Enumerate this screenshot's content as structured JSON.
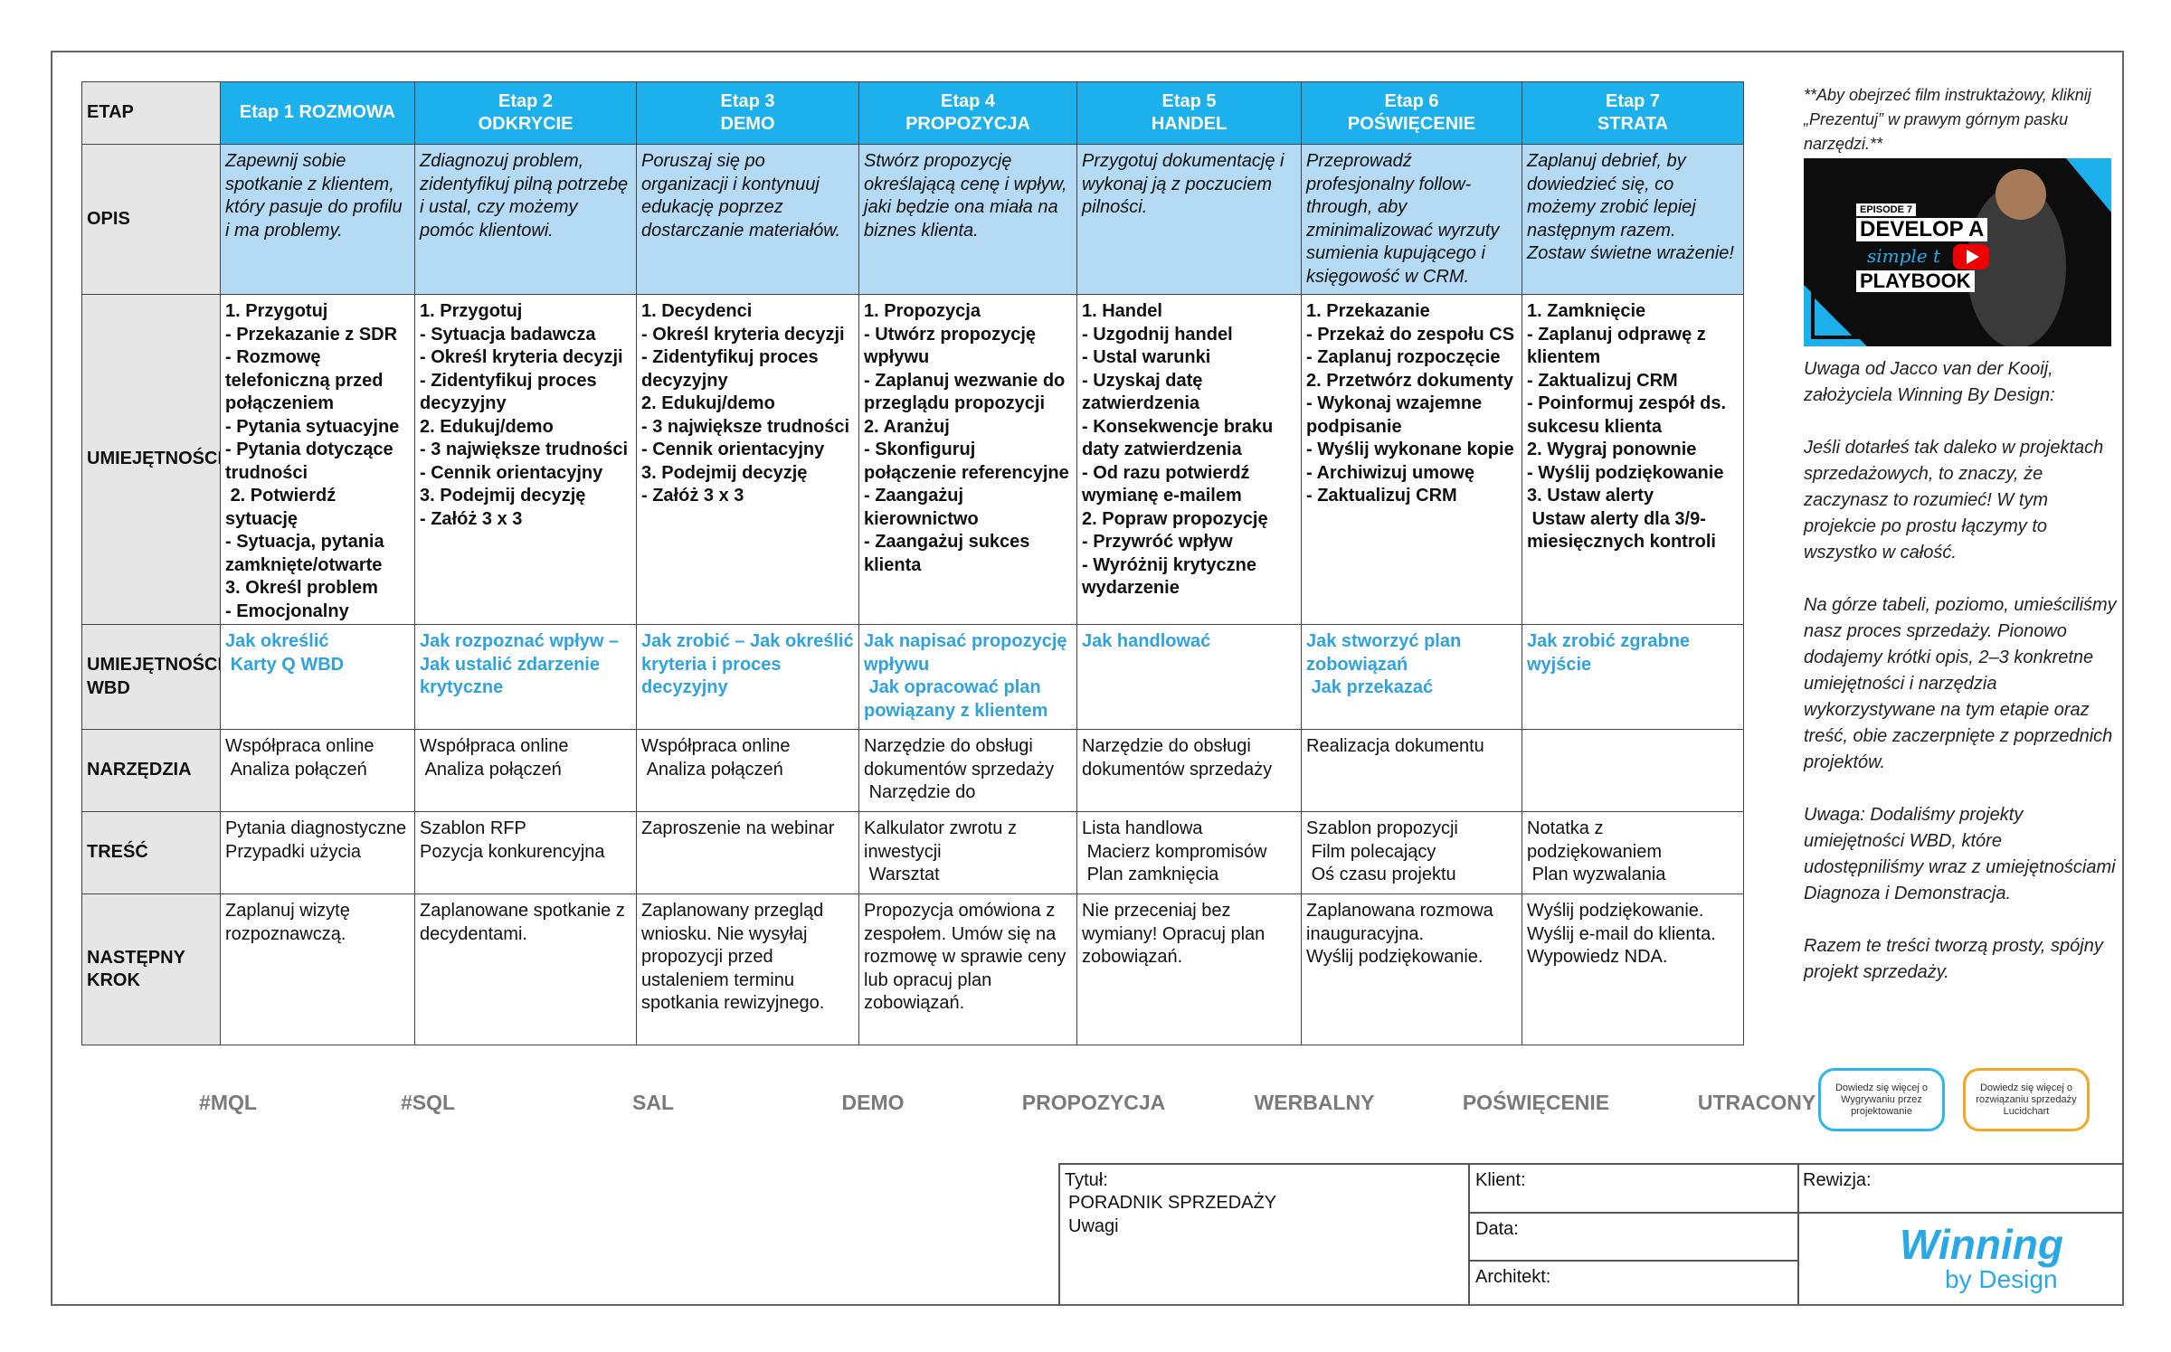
{
  "table": {
    "header": [
      [
        "ETAP"
      ],
      [
        "Etap 1 ROZMOWA"
      ],
      [
        "Etap 2",
        "ODKRYCIE"
      ],
      [
        "Etap 3",
        "DEMO"
      ],
      [
        "Etap 4",
        "PROPOZYCJA"
      ],
      [
        "Etap 5",
        "HANDEL"
      ],
      [
        "Etap 6",
        "POŚWIĘCENIE"
      ],
      [
        "Etap 7",
        "STRATA"
      ]
    ],
    "rows": [
      {
        "label": [
          "OPIS"
        ],
        "cells": [
          [
            "Zapewnij sobie spotkanie z klientem, który pasuje do profilu i ma problemy."
          ],
          [
            "Zdiagnozuj problem, zidentyfikuj pilną potrzebę i ustal, czy możemy pomóc klientowi."
          ],
          [
            "Poruszaj się po organizacji i kontynuuj edukację poprzez dostarczanie materiałów."
          ],
          [
            "Stwórz propozycję określającą cenę i wpływ, jaki będzie ona miała na biznes klienta."
          ],
          [
            "Przygotuj dokumentację i wykonaj ją z poczuciem pilności."
          ],
          [
            "Przeprowadź profesjonalny follow-through, aby zminimalizować wyrzuty sumienia kupującego i księgowość w CRM."
          ],
          [
            "Zaplanuj debrief, by dowiedzieć się, co możemy zrobić lepiej następnym razem. Zostaw świetne wrażenie!"
          ]
        ]
      },
      {
        "label": [
          "UMIEJĘTNOŚCI"
        ],
        "cells": [
          [
            "1. Przygotuj",
            "- Przekazanie z SDR",
            "- Rozmowę telefoniczną przed połączeniem",
            "- Pytania sytuacyjne",
            "- Pytania dotyczące trudności",
            " 2. Potwierdź sytuację",
            "- Sytuacja, pytania zamknięte/otwarte",
            "3. Określ problem",
            "- Emocjonalny"
          ],
          [
            "1. Przygotuj",
            "- Sytuacja badawcza",
            "- Określ kryteria decyzji",
            "- Zidentyfikuj proces decyzyjny",
            "2. Edukuj/demo",
            "- 3 największe trudności",
            "- Cennik orientacyjny",
            "3. Podejmij decyzję",
            "- Załóż 3 x 3"
          ],
          [
            "1. Decydenci",
            "- Określ kryteria decyzji",
            "- Zidentyfikuj proces decyzyjny",
            "2. Edukuj/demo",
            "- 3 największe trudności",
            "- Cennik orientacyjny",
            "3. Podejmij decyzję",
            "- Załóż 3 x 3"
          ],
          [
            "1. Propozycja",
            "- Utwórz propozycję wpływu",
            "- Zaplanuj wezwanie do przeglądu propozycji",
            "2. Aranżuj",
            "- Skonfiguruj połączenie referencyjne",
            "- Zaangażuj kierownictwo",
            "- Zaangażuj sukces klienta"
          ],
          [
            "1. Handel",
            "- Uzgodnij handel",
            "- Ustal warunki",
            "- Uzyskaj datę zatwierdzenia",
            "- Konsekwencje braku daty zatwierdzenia",
            "- Od razu potwierdź wymianę e-mailem",
            "2. Popraw propozycję",
            "- Przywróć wpływ",
            "- Wyróżnij krytyczne wydarzenie"
          ],
          [
            "1. Przekazanie",
            "- Przekaż do zespołu CS",
            "- Zaplanuj rozpoczęcie",
            "2. Przetwórz dokumenty",
            "- Wykonaj wzajemne podpisanie",
            "- Wyślij wykonane kopie",
            "- Archiwizuj umowę",
            "- Zaktualizuj CRM"
          ],
          [
            "1. Zamknięcie",
            "- Zaplanuj odprawę z klientem",
            "- Zaktualizuj CRM",
            "- Poinformuj zespół ds. sukcesu klienta",
            "2. Wygraj ponownie",
            "- Wyślij podziękowanie",
            "3. Ustaw alerty",
            " Ustaw alerty dla 3/9-miesięcznych kontroli"
          ]
        ]
      },
      {
        "label": [
          "UMIEJĘTNOŚCI",
          "WBD"
        ],
        "cells": [
          [
            "Jak określić",
            " Karty Q WBD"
          ],
          [
            "Jak rozpoznać wpływ – Jak ustalić zdarzenie krytyczne"
          ],
          [
            "Jak zrobić – Jak określić kryteria i proces decyzyjny"
          ],
          [
            "Jak napisać propozycję wpływu",
            " Jak opracować plan powiązany z klientem"
          ],
          [
            "Jak handlować"
          ],
          [
            "Jak stworzyć plan zobowiązań",
            " Jak przekazać"
          ],
          [
            "Jak zrobić zgrabne wyjście"
          ]
        ]
      },
      {
        "label": [
          "NARZĘDZIA"
        ],
        "cells": [
          [
            "Współpraca online",
            " Analiza połączeń"
          ],
          [
            "Współpraca online",
            " Analiza połączeń"
          ],
          [
            "Współpraca online",
            " Analiza połączeń"
          ],
          [
            "Narzędzie do obsługi dokumentów sprzedaży",
            " Narzędzie do"
          ],
          [
            "Narzędzie do obsługi dokumentów sprzedaży"
          ],
          [
            "Realizacja dokumentu"
          ],
          []
        ]
      },
      {
        "label": [
          "TREŚĆ"
        ],
        "cells": [
          [
            "Pytania diagnostyczne",
            "Przypadki użycia"
          ],
          [
            "Szablon RFP",
            "Pozycja konkurencyjna"
          ],
          [
            "Zaproszenie na webinar"
          ],
          [
            "Kalkulator zwrotu z inwestycji",
            " Warsztat"
          ],
          [
            "Lista handlowa",
            " Macierz kompromisów",
            " Plan zamknięcia"
          ],
          [
            "Szablon propozycji",
            " Film polecający",
            " Oś czasu projektu"
          ],
          [
            "Notatka z podziękowaniem",
            " Plan wyzwalania"
          ]
        ]
      },
      {
        "label": [
          "NASTĘPNY",
          "KROK"
        ],
        "cells": [
          [
            "Zaplanuj wizytę rozpoznawczą."
          ],
          [
            "Zaplanowane spotkanie z decydentami."
          ],
          [
            "Zaplanowany przegląd wniosku. Nie wysyłaj propozycji przed ustaleniem terminu spotkania rewizyjnego."
          ],
          [
            "Propozycja omówiona z zespołem. Umów się na rozmowę w sprawie ceny lub opracuj plan zobowiązań."
          ],
          [
            "Nie przeceniaj bez wymiany! Opracuj plan zobowiązań."
          ],
          [
            "Zaplanowana rozmowa inauguracyjna.",
            "Wyślij podziękowanie."
          ],
          [
            "Wyślij podziękowanie.",
            "Wyślij e-mail do klienta.",
            "Wypowiedz NDA."
          ]
        ]
      }
    ]
  },
  "side_note": {
    "intro": "**Aby obejrzeć  film instruktażowy, kliknij „Prezentuj” w prawym górnym pasku narzędzi.**",
    "video": {
      "episode": "EPISODE 7",
      "line1": "DEVELOP A",
      "line2": "simple t",
      "line3": "PLAYBOOK"
    },
    "paragraphs": [
      "Uwaga od Jacco van der Kooij, założyciela Winning By Design:",
      "Jeśli dotarłeś tak daleko w projektach sprzedażowych, to znaczy, że zaczynasz to rozumieć! W tym projekcie po prostu łączymy to wszystko w całość.",
      "Na górze tabeli, poziomo, umieściliśmy nasz proces sprzedaży. Pionowo dodajemy krótki opis, 2–3 konkretne umiejętności i narzędzia wykorzystywane na tym etapie oraz treść, obie zaczerpnięte z poprzednich projektów.",
      "Uwaga: Dodaliśmy projekty umiejętności WBD, które udostępniliśmy wraz z umiejętnościami Diagnoza i Demonstracja.",
      "Razem te treści tworzą prosty, spójny projekt sprzedaży."
    ]
  },
  "stages": [
    "#MQL",
    "#SQL",
    "SAL",
    "DEMO",
    "PROPOZYCJA",
    "WERBALNY",
    "POŚWIĘCENIE",
    "UTRACONY"
  ],
  "buttons": [
    "Dowiedz się więcej o Wygrywaniu przez projektowanie",
    "Dowiedz się więcej o rozwiązaniu sprzedaży Lucidchart"
  ],
  "title_block": {
    "title_label": "Tytuł:",
    "title": "PORADNIK SPRZEDAŻY",
    "notes": "Uwagi",
    "client": "Klient:",
    "date": "Data:",
    "architect": "Architekt:",
    "revision": "Rewizja:",
    "logo_main": "Winning",
    "logo_sub": "by Design"
  }
}
